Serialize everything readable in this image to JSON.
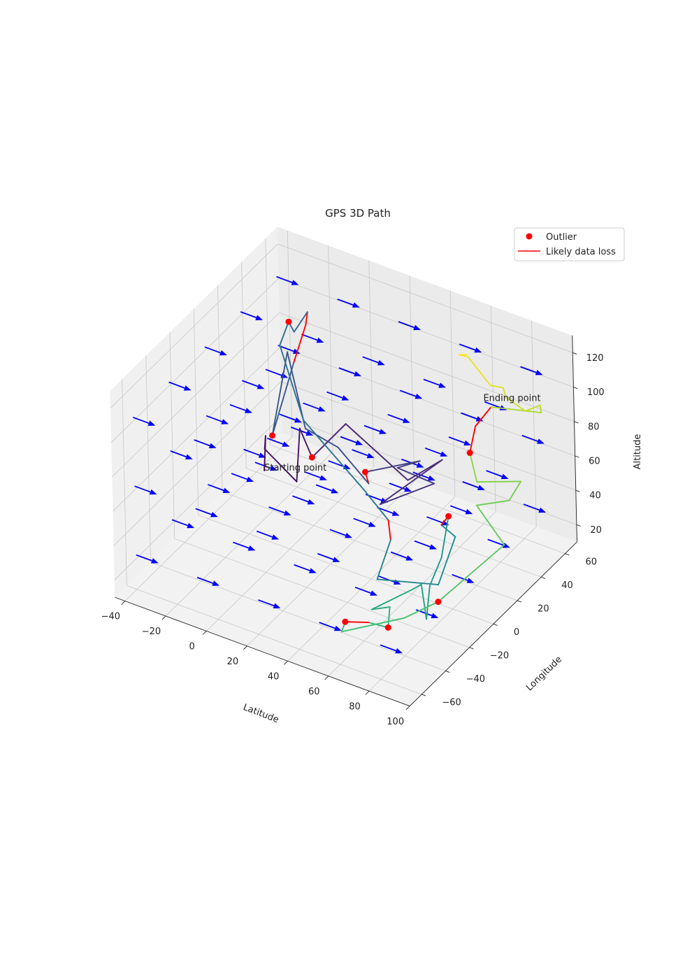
{
  "chart_data": {
    "type": "line",
    "projection": "3d",
    "title": "GPS 3D Path",
    "xlabel": "Latitude",
    "ylabel": "Longitude",
    "zlabel": "Altitude",
    "xlim": [
      -45,
      100
    ],
    "ylim": [
      -70,
      70
    ],
    "zlim": [
      10,
      130
    ],
    "xticks": [
      "−40",
      "−20",
      "0",
      "20",
      "40",
      "60",
      "80",
      "100"
    ],
    "yticks": [
      "−60",
      "−40",
      "−20",
      "0",
      "20",
      "40",
      "60"
    ],
    "zticks": [
      "20",
      "40",
      "60",
      "80",
      "100",
      "120"
    ],
    "grid": true,
    "legend_position": "upper-right",
    "legend": [
      {
        "label": "Outlier",
        "marker": "dot",
        "color": "#ff0000"
      },
      {
        "label": "Likely data loss",
        "marker": "line",
        "color": "#ff0000"
      }
    ],
    "colormap": "viridis",
    "annotations": [
      {
        "text": "Starting point",
        "x": -30,
        "y": 30,
        "z": 22
      },
      {
        "text": "Ending point",
        "x": 60,
        "y": 62,
        "z": 80
      }
    ],
    "path": [
      {
        "x": -30,
        "y": 30,
        "z": 22,
        "loss": false,
        "outlier": false
      },
      {
        "x": -32,
        "y": 35,
        "z": 38,
        "loss": false,
        "outlier": false
      },
      {
        "x": -32,
        "y": 34,
        "z": 31,
        "loss": false,
        "outlier": false
      },
      {
        "x": -8,
        "y": 20,
        "z": 32,
        "loss": false,
        "outlier": false
      },
      {
        "x": -18,
        "y": 40,
        "z": 45,
        "loss": false,
        "outlier": false
      },
      {
        "x": -5,
        "y": 28,
        "z": 42,
        "loss": false,
        "outlier": true
      },
      {
        "x": 0,
        "y": 48,
        "z": 50,
        "loss": false,
        "outlier": false
      },
      {
        "x": 35,
        "y": 40,
        "z": 38,
        "loss": false,
        "outlier": false
      },
      {
        "x": 45,
        "y": 52,
        "z": 46,
        "loss": false,
        "outlier": false
      },
      {
        "x": 30,
        "y": 25,
        "z": 32,
        "loss": false,
        "outlier": false
      },
      {
        "x": 45,
        "y": 45,
        "z": 37,
        "loss": false,
        "outlier": false
      },
      {
        "x": 30,
        "y": 40,
        "z": 43,
        "loss": false,
        "outlier": false
      },
      {
        "x": 40,
        "y": 42,
        "z": 50,
        "loss": false,
        "outlier": false
      },
      {
        "x": 20,
        "y": 30,
        "z": 43,
        "loss": true,
        "outlier": true
      },
      {
        "x": 21,
        "y": 31,
        "z": 36,
        "loss": false,
        "outlier": false
      },
      {
        "x": 2,
        "y": 38,
        "z": 44,
        "loss": false,
        "outlier": false
      },
      {
        "x": -14,
        "y": 38,
        "z": 48,
        "loss": false,
        "outlier": false
      },
      {
        "x": -33,
        "y": 56,
        "z": 72,
        "loss": false,
        "outlier": false
      },
      {
        "x": -22,
        "y": 24,
        "z": 50,
        "loss": false,
        "outlier": true
      },
      {
        "x": -25,
        "y": 48,
        "z": 75,
        "loss": true,
        "outlier": false
      },
      {
        "x": -26,
        "y": 60,
        "z": 88,
        "loss": true,
        "outlier": false
      },
      {
        "x": -25,
        "y": 60,
        "z": 96,
        "loss": false,
        "outlier": false
      },
      {
        "x": -27,
        "y": 52,
        "z": 89,
        "loss": false,
        "outlier": false
      },
      {
        "x": -32,
        "y": 56,
        "z": 90,
        "loss": false,
        "outlier": true
      },
      {
        "x": -33,
        "y": 50,
        "z": 80,
        "loss": false,
        "outlier": false
      },
      {
        "x": -10,
        "y": 30,
        "z": 60,
        "loss": false,
        "outlier": false
      },
      {
        "x": 25,
        "y": 20,
        "z": 42,
        "loss": false,
        "outlier": false
      },
      {
        "x": 40,
        "y": 15,
        "z": 34,
        "loss": true,
        "outlier": false
      },
      {
        "x": 50,
        "y": 0,
        "z": 37,
        "loss": false,
        "outlier": false
      },
      {
        "x": 55,
        "y": -20,
        "z": 30,
        "loss": false,
        "outlier": false
      },
      {
        "x": 75,
        "y": -3,
        "z": 24,
        "loss": false,
        "outlier": false
      },
      {
        "x": 70,
        "y": 20,
        "z": 34,
        "loss": false,
        "outlier": false
      },
      {
        "x": 62,
        "y": 22,
        "z": 36,
        "loss": true,
        "outlier": false
      },
      {
        "x": 62,
        "y": 28,
        "z": 37,
        "loss": false,
        "outlier": true
      },
      {
        "x": 72,
        "y": 5,
        "z": 33,
        "loss": false,
        "outlier": false
      },
      {
        "x": 78,
        "y": -15,
        "z": 33,
        "loss": false,
        "outlier": false
      },
      {
        "x": 82,
        "y": -25,
        "z": 22,
        "loss": false,
        "outlier": false
      },
      {
        "x": 72,
        "y": -12,
        "z": 29,
        "loss": false,
        "outlier": false
      },
      {
        "x": 74,
        "y": -22,
        "z": 34,
        "loss": false,
        "outlier": false
      },
      {
        "x": 64,
        "y": -40,
        "z": 30,
        "loss": false,
        "outlier": false
      },
      {
        "x": 67,
        "y": -30,
        "z": 26,
        "loss": false,
        "outlier": false
      },
      {
        "x": 72,
        "y": -40,
        "z": 23,
        "loss": false,
        "outlier": true
      },
      {
        "x": 60,
        "y": -36,
        "z": 18,
        "loss": true,
        "outlier": false
      },
      {
        "x": 52,
        "y": -42,
        "z": 19,
        "loss": false,
        "outlier": true
      },
      {
        "x": 55,
        "y": -50,
        "z": 20,
        "loss": false,
        "outlier": false
      },
      {
        "x": 80,
        "y": -40,
        "z": 32,
        "loss": false,
        "outlier": false
      },
      {
        "x": 85,
        "y": -20,
        "z": 30,
        "loss": false,
        "outlier": true
      },
      {
        "x": 85,
        "y": 5,
        "z": 28,
        "loss": false,
        "outlier": false
      },
      {
        "x": 93,
        "y": 22,
        "z": 38,
        "loss": false,
        "outlier": false
      },
      {
        "x": 70,
        "y": 38,
        "z": 40,
        "loss": false,
        "outlier": false
      },
      {
        "x": 85,
        "y": 40,
        "z": 48,
        "loss": false,
        "outlier": false
      },
      {
        "x": 88,
        "y": 45,
        "z": 57,
        "loss": false,
        "outlier": false
      },
      {
        "x": 68,
        "y": 42,
        "z": 50,
        "loss": false,
        "outlier": false
      },
      {
        "x": 60,
        "y": 50,
        "z": 58,
        "loss": true,
        "outlier": true
      },
      {
        "x": 60,
        "y": 55,
        "z": 70,
        "loss": true,
        "outlier": false
      },
      {
        "x": 65,
        "y": 60,
        "z": 80,
        "loss": false,
        "outlier": false
      },
      {
        "x": 85,
        "y": 68,
        "z": 80,
        "loss": false,
        "outlier": false
      },
      {
        "x": 85,
        "y": 67,
        "z": 85,
        "loss": false,
        "outlier": false
      },
      {
        "x": 82,
        "y": 60,
        "z": 85,
        "loss": false,
        "outlier": false
      },
      {
        "x": 70,
        "y": 64,
        "z": 85,
        "loss": false,
        "outlier": false
      },
      {
        "x": 70,
        "y": 62,
        "z": 92,
        "loss": false,
        "outlier": false
      },
      {
        "x": 60,
        "y": 68,
        "z": 85,
        "loss": false,
        "outlier": false
      },
      {
        "x": 48,
        "y": 70,
        "z": 95,
        "loss": false,
        "outlier": false
      },
      {
        "x": 46,
        "y": 66,
        "z": 98,
        "loss": false,
        "outlier": false
      },
      {
        "x": 48,
        "y": 69,
        "z": 97,
        "loss": false,
        "outlier": false
      }
    ],
    "quiver": {
      "color": "#0000ff",
      "direction": [
        1,
        0,
        0
      ],
      "x": [
        -40,
        -10,
        20,
        50,
        80
      ],
      "y": [
        -60,
        -30,
        0,
        30,
        60
      ],
      "z": [
        30,
        70,
        110
      ]
    }
  }
}
